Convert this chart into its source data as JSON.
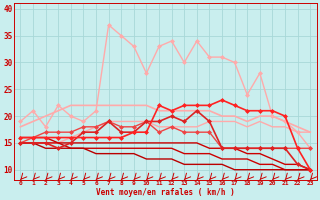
{
  "xlabel": "Vent moyen/en rafales ( km/h )",
  "x": [
    0,
    1,
    2,
    3,
    4,
    5,
    6,
    7,
    8,
    9,
    10,
    11,
    12,
    13,
    14,
    15,
    16,
    17,
    18,
    19,
    20,
    21,
    22,
    23
  ],
  "ylim": [
    8,
    41
  ],
  "xlim": [
    -0.5,
    23.5
  ],
  "yticks": [
    10,
    15,
    20,
    25,
    30,
    35,
    40
  ],
  "background_color": "#c9eeee",
  "grid_color": "#a8d8d8",
  "lines": [
    {
      "y": [
        18,
        19,
        20,
        21,
        22,
        22,
        22,
        22,
        22,
        22,
        22,
        21,
        21,
        21,
        21,
        21,
        20,
        20,
        19,
        20,
        20,
        19,
        18,
        17
      ],
      "color": "#ffaaaa",
      "lw": 1.2,
      "marker": null,
      "zorder": 2
    },
    {
      "y": [
        15,
        15,
        15,
        15,
        16,
        17,
        18,
        19,
        19,
        19,
        19,
        18,
        18,
        18,
        18,
        19,
        19,
        19,
        18,
        19,
        18,
        18,
        17,
        17
      ],
      "color": "#ffaaaa",
      "lw": 1.0,
      "marker": null,
      "zorder": 2
    },
    {
      "y": [
        19,
        21,
        18,
        22,
        20,
        19,
        21,
        37,
        35,
        33,
        28,
        33,
        34,
        30,
        34,
        31,
        31,
        30,
        24,
        28,
        20,
        19,
        17,
        14
      ],
      "color": "#ffaaaa",
      "lw": 1.0,
      "marker": "D",
      "ms": 2.0,
      "zorder": 3
    },
    {
      "y": [
        15,
        16,
        17,
        17,
        17,
        18,
        18,
        19,
        18,
        18,
        19,
        17,
        18,
        17,
        17,
        17,
        14,
        14,
        14,
        14,
        14,
        14,
        14,
        14
      ],
      "color": "#ee4444",
      "lw": 1.0,
      "marker": "D",
      "ms": 2.0,
      "zorder": 4
    },
    {
      "y": [
        16,
        16,
        16,
        15,
        15,
        15,
        15,
        15,
        15,
        15,
        15,
        15,
        15,
        15,
        15,
        14,
        14,
        14,
        13,
        13,
        12,
        11,
        11,
        10
      ],
      "color": "#cc0000",
      "lw": 1.0,
      "marker": null,
      "zorder": 3
    },
    {
      "y": [
        15,
        15,
        15,
        15,
        14,
        14,
        14,
        14,
        14,
        14,
        14,
        14,
        14,
        13,
        13,
        13,
        12,
        12,
        12,
        11,
        11,
        10,
        10,
        10
      ],
      "color": "#cc0000",
      "lw": 1.0,
      "marker": null,
      "zorder": 3
    },
    {
      "y": [
        15,
        15,
        14,
        14,
        14,
        14,
        13,
        13,
        13,
        13,
        12,
        12,
        12,
        11,
        11,
        11,
        11,
        10,
        10,
        10,
        10,
        10,
        10,
        10
      ],
      "color": "#bb0000",
      "lw": 1.0,
      "marker": null,
      "zorder": 3
    },
    {
      "y": [
        15,
        15,
        15,
        14,
        15,
        17,
        17,
        19,
        17,
        17,
        19,
        19,
        20,
        19,
        21,
        19,
        14,
        14,
        14,
        14,
        14,
        14,
        11,
        10
      ],
      "color": "#dd2222",
      "lw": 1.2,
      "marker": "D",
      "ms": 2.0,
      "zorder": 4
    },
    {
      "y": [
        16,
        16,
        16,
        16,
        16,
        16,
        16,
        16,
        16,
        17,
        17,
        22,
        21,
        22,
        22,
        22,
        23,
        22,
        21,
        21,
        21,
        20,
        14,
        10
      ],
      "color": "#ff2222",
      "lw": 1.2,
      "marker": "D",
      "ms": 2.0,
      "zorder": 5
    }
  ]
}
